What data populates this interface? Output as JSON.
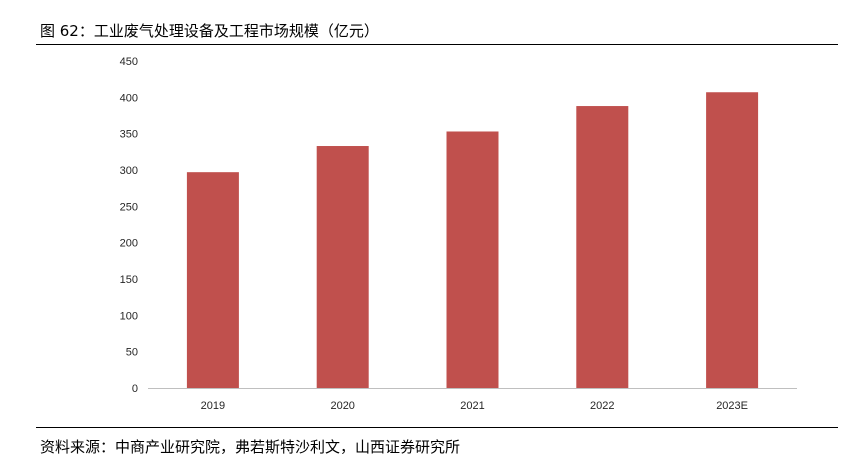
{
  "figure": {
    "title": "图 62：工业废气处理设备及工程市场规模（亿元）",
    "source": "资料来源：中商产业研究院，弗若斯特沙利文，山西证券研究所"
  },
  "colors": {
    "bar": "#c0504d",
    "axis": "#bfbfbf",
    "rule": "#000000"
  },
  "chart_data": {
    "type": "bar",
    "categories": [
      "2019",
      "2020",
      "2021",
      "2022",
      "2023E"
    ],
    "values": [
      297,
      333,
      353,
      388,
      407
    ],
    "yticks": [
      "0",
      "50",
      "100",
      "150",
      "200",
      "250",
      "300",
      "350",
      "400",
      "450"
    ],
    "ylim": [
      0,
      450
    ],
    "grid": false,
    "legend": "none",
    "xlabel": "",
    "ylabel": ""
  }
}
